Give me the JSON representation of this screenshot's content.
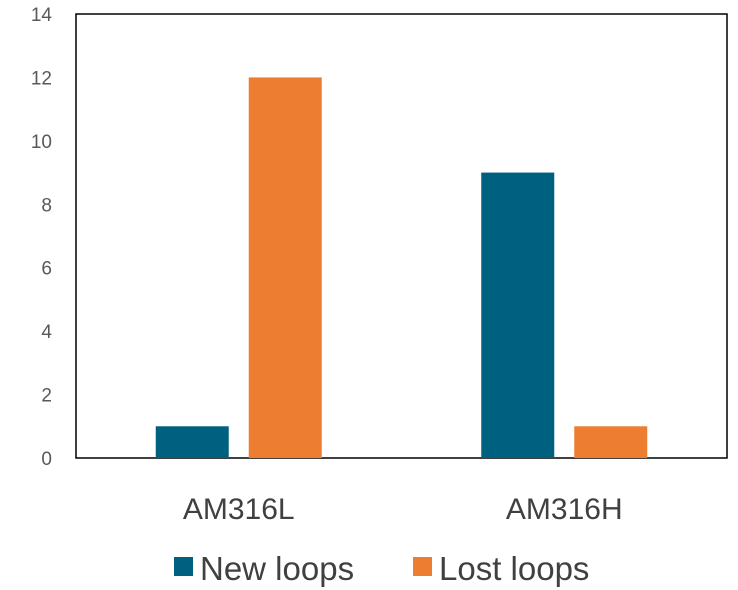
{
  "chart_data": {
    "type": "bar",
    "categories": [
      "AM316L",
      "AM316H"
    ],
    "series": [
      {
        "name": "New loops",
        "color": "#00607F",
        "values": [
          1,
          9
        ]
      },
      {
        "name": "Lost loops",
        "color": "#ED7D31",
        "values": [
          12,
          1
        ]
      }
    ],
    "ylim": [
      0,
      14
    ],
    "yticks": [
      0,
      2,
      4,
      6,
      8,
      10,
      12,
      14
    ],
    "grid": false,
    "legend": "bottom"
  }
}
